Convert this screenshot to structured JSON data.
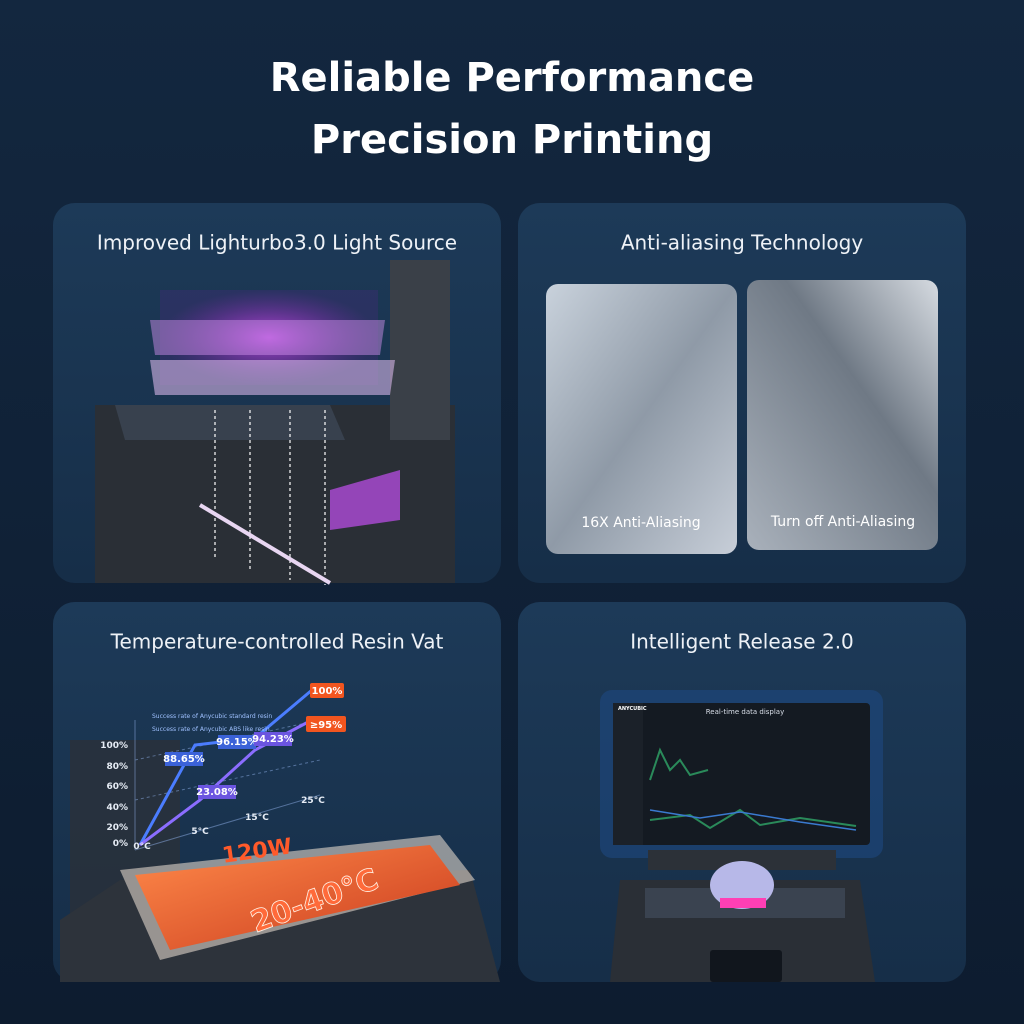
{
  "header": {
    "title_lines": [
      "Reliable Performance",
      "Precision Printing"
    ]
  },
  "panels": [
    {
      "title": "Improved Lighturbo3.0 Light Source"
    },
    {
      "title": "Anti-aliasing Technology",
      "images": [
        {
          "label": "16X Anti-Aliasing"
        },
        {
          "label": "Turn off Anti-Aliasing"
        }
      ]
    },
    {
      "title": "Temperature-controlled Resin Vat",
      "chart": {
        "legend": [
          "Success rate of Anycubic standard resin",
          "Success rate of Anycubic ABS like resin"
        ],
        "y_labels": [
          "100%",
          "80%",
          "60%",
          "40%",
          "20%",
          "0%"
        ],
        "x_labels": [
          "0°C",
          "5°C",
          "15°C",
          "25°C"
        ],
        "point_labels": [
          "88.65%",
          "96.15%",
          "94.23%",
          "23.08%"
        ],
        "badges": [
          "100%",
          "≥95%"
        ]
      },
      "power": "120W",
      "temp_range": "20-40°C"
    },
    {
      "title": "Intelligent Release 2.0",
      "screen": {
        "brand": "ANYCUBIC",
        "title": "Real-time data display"
      }
    }
  ]
}
